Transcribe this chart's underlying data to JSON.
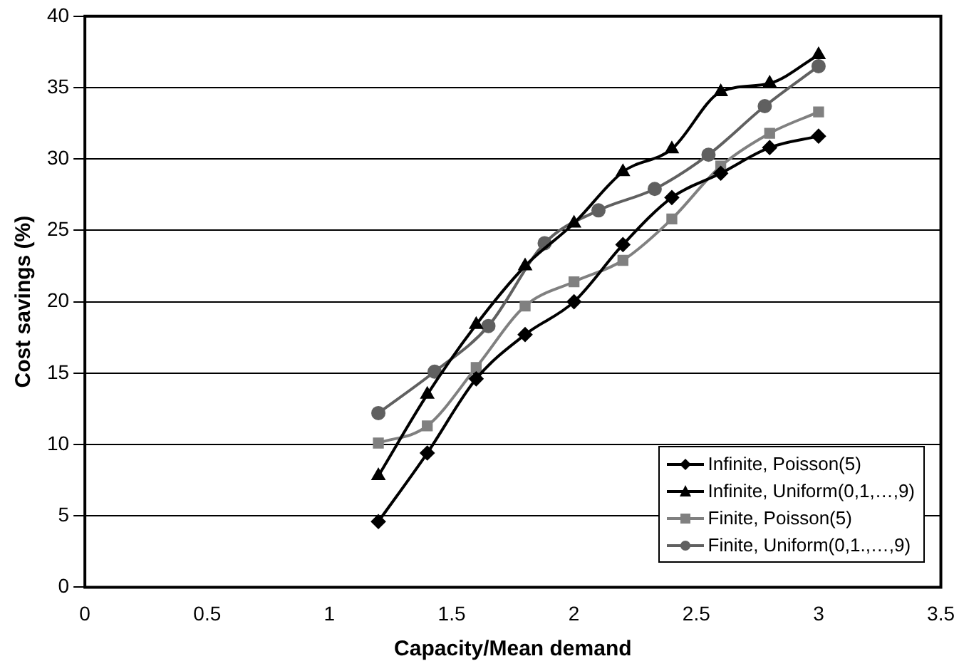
{
  "chart_data": {
    "type": "line",
    "xlabel": "Capacity/Mean demand",
    "ylabel": "Cost savings (%)",
    "xlim": [
      0,
      3.5
    ],
    "xticks": [
      0,
      0.5,
      1,
      1.5,
      2,
      2.5,
      3,
      3.5
    ],
    "ylim": [
      0,
      40
    ],
    "yticks": [
      0,
      5,
      10,
      15,
      20,
      25,
      30,
      35,
      40
    ],
    "grid": "y",
    "legend": "bottom right",
    "series": [
      {
        "name": "Infinite, Poisson(5)",
        "color": "#000000",
        "marker": "diamond",
        "x": [
          1.2,
          1.4,
          1.6,
          1.8,
          2.0,
          2.2,
          2.4,
          2.6,
          2.8,
          3.0
        ],
        "values": [
          4.6,
          9.4,
          14.6,
          17.7,
          20.0,
          24.0,
          27.3,
          29.0,
          30.8,
          31.6
        ]
      },
      {
        "name": "Infinite, Uniform(0,1,…,9)",
        "color": "#000000",
        "marker": "triangle",
        "x": [
          1.2,
          1.4,
          1.6,
          1.8,
          2.0,
          2.2,
          2.4,
          2.6,
          2.8,
          3.0
        ],
        "values": [
          7.8,
          13.5,
          18.4,
          22.5,
          25.5,
          29.1,
          30.7,
          34.7,
          35.3,
          37.3
        ]
      },
      {
        "name": "Finite, Poisson(5)",
        "color": "#808080",
        "marker": "square",
        "x": [
          1.2,
          1.4,
          1.6,
          1.8,
          2.0,
          2.2,
          2.4,
          2.6,
          2.8,
          3.0
        ],
        "values": [
          10.1,
          11.3,
          15.4,
          19.7,
          21.4,
          22.9,
          25.8,
          29.5,
          31.8,
          33.3
        ]
      },
      {
        "name": "Finite, Uniform(0,1.,…,9)",
        "color": "#606060",
        "marker": "circle",
        "x": [
          1.2,
          1.43,
          1.65,
          1.88,
          2.1,
          2.33,
          2.55,
          2.78,
          3.0
        ],
        "values": [
          12.2,
          15.1,
          18.3,
          24.1,
          26.4,
          27.9,
          30.3,
          33.7,
          36.5
        ]
      }
    ]
  }
}
